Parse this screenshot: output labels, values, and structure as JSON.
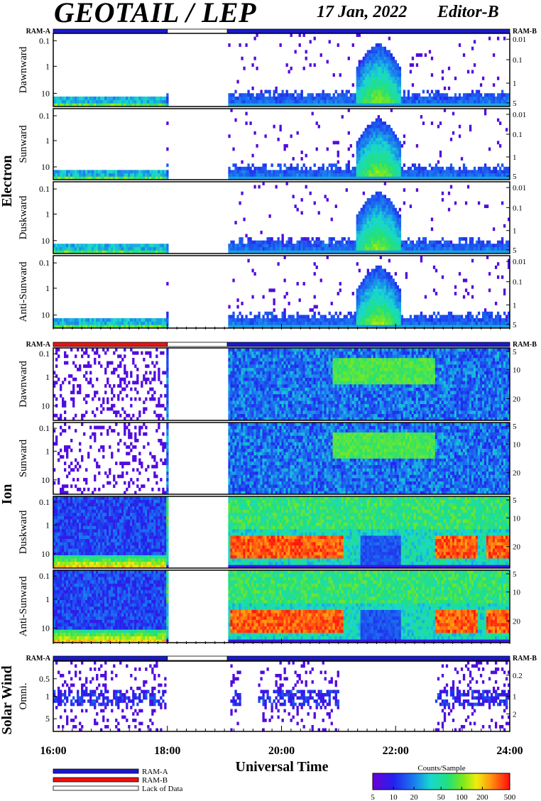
{
  "header": {
    "title": "GEOTAIL / LEP",
    "date": "17 Jan, 2022",
    "editor": "Editor-B"
  },
  "colors": {
    "ram_a": "#1a1ad0",
    "ram_b": "#ee1111",
    "lack_of_data": "#ffffff"
  },
  "legend": {
    "items": [
      "RAM-A",
      "RAM-B",
      "Lack of Data"
    ],
    "colorbar_title": "Counts/Sample",
    "colorbar_ticks": [
      "5",
      "10",
      "20",
      "50",
      "100",
      "200",
      "500"
    ]
  },
  "chart_data": {
    "type": "heatmap",
    "xlabel": "Universal Time",
    "x_ticks": [
      "16:00",
      "18:00",
      "20:00",
      "22:00",
      "24:00"
    ],
    "xlim": [
      16.0,
      24.0
    ],
    "data_gap_hours": [
      18.0,
      19.05
    ],
    "mode_bars": {
      "left_label": "RAM-A",
      "right_label": "RAM-B",
      "electron": [
        {
          "from": 16.0,
          "to": 18.0,
          "mode": "RAM-A"
        },
        {
          "from": 18.0,
          "to": 19.05,
          "mode": "none"
        },
        {
          "from": 19.05,
          "to": 24.0,
          "mode": "RAM-A"
        }
      ],
      "ion": [
        {
          "from": 16.0,
          "to": 18.0,
          "mode": "RAM-B"
        },
        {
          "from": 18.0,
          "to": 19.05,
          "mode": "none"
        },
        {
          "from": 19.05,
          "to": 24.0,
          "mode": "RAM-A"
        }
      ],
      "solar_wind": [
        {
          "from": 16.0,
          "to": 18.0,
          "mode": "RAM-A"
        },
        {
          "from": 18.0,
          "to": 19.05,
          "mode": "none"
        },
        {
          "from": 19.05,
          "to": 24.0,
          "mode": "RAM-A"
        }
      ]
    },
    "groups": [
      {
        "name": "Electron",
        "panels": [
          {
            "label": "Dawnward",
            "left_ticks": [
              "10",
              "1",
              "0.1"
            ],
            "right_ticks": [
              "5",
              "1",
              "0.1",
              "0.01"
            ],
            "ylim": [
              0.08,
              30
            ],
            "profile": "electron"
          },
          {
            "label": "Sunward",
            "left_ticks": [
              "10",
              "1",
              "0.1"
            ],
            "right_ticks": [
              "5",
              "1",
              "0.1",
              "0.01"
            ],
            "ylim": [
              0.08,
              30
            ],
            "profile": "electron"
          },
          {
            "label": "Duskward",
            "left_ticks": [
              "10",
              "1",
              "0.1"
            ],
            "right_ticks": [
              "5",
              "1",
              "0.1",
              "0.01"
            ],
            "ylim": [
              0.08,
              30
            ],
            "profile": "electron"
          },
          {
            "label": "Anti-Sunward",
            "left_ticks": [
              "10",
              "1",
              "0.1"
            ],
            "right_ticks": [
              "5",
              "1",
              "0.1",
              "0.01"
            ],
            "ylim": [
              0.08,
              30
            ],
            "profile": "electron"
          }
        ]
      },
      {
        "name": "Ion",
        "panels": [
          {
            "label": "Dawnward",
            "left_ticks": [
              "10",
              "1",
              "0.1"
            ],
            "right_ticks": [
              "20",
              "10",
              "5"
            ],
            "ylim": [
              0.08,
              40
            ],
            "profile": "ion_sparse"
          },
          {
            "label": "Sunward",
            "left_ticks": [
              "10",
              "1",
              "0.1"
            ],
            "right_ticks": [
              "20",
              "10",
              "5"
            ],
            "ylim": [
              0.08,
              40
            ],
            "profile": "ion_sparse"
          },
          {
            "label": "Duskward",
            "left_ticks": [
              "10",
              "1",
              "0.1"
            ],
            "right_ticks": [
              "20",
              "10",
              "5"
            ],
            "ylim": [
              0.08,
              40
            ],
            "profile": "ion_dense"
          },
          {
            "label": "Anti-Sunward",
            "left_ticks": [
              "10",
              "1",
              "0.1"
            ],
            "right_ticks": [
              "20",
              "10",
              "5"
            ],
            "ylim": [
              0.08,
              40
            ],
            "profile": "ion_dense"
          }
        ]
      },
      {
        "name": "Solar Wind",
        "panels": [
          {
            "label": "Omni.",
            "left_ticks": [
              "5",
              "1",
              "0.5"
            ],
            "right_ticks": [
              "2",
              "1",
              "0.2"
            ],
            "ylim": [
              0.2,
              10
            ],
            "profile": "solarwind"
          }
        ]
      }
    ]
  }
}
